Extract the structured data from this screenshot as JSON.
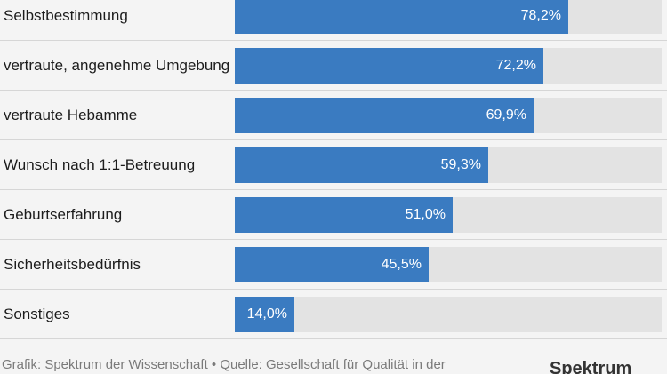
{
  "chart_data": {
    "type": "bar",
    "orientation": "horizontal",
    "categories": [
      "Selbstbestimmung",
      "vertraute, angenehme Umgebung",
      "vertraute Hebamme",
      "Wunsch nach 1:1-Betreuung",
      "Geburtserfahrung",
      "Sicherheitsbedürfnis",
      "Sonstiges"
    ],
    "values": [
      78.2,
      72.2,
      69.9,
      59.3,
      51.0,
      45.5,
      14.0
    ],
    "value_labels": [
      "78,2%",
      "72,2%",
      "69,9%",
      "59,3%",
      "51,0%",
      "45,5%",
      "14,0%"
    ],
    "xlim": [
      0,
      100
    ],
    "bar_color": "#3a7bc1",
    "track_color": "#e3e3e3"
  },
  "footer": {
    "source": "Grafik: Spektrum der Wissenschaft • Quelle: Gesellschaft für Qualität in der"
  }
}
